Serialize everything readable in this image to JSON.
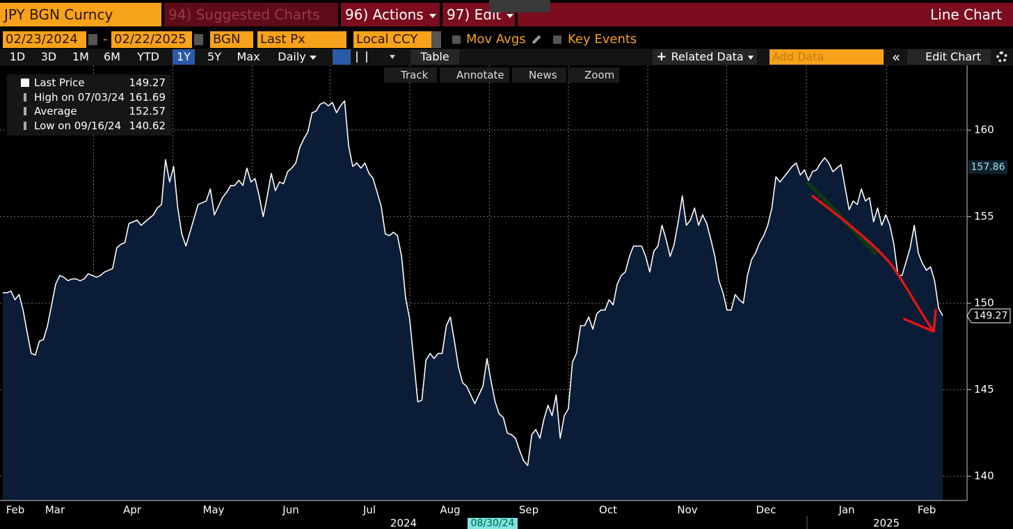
{
  "header": {
    "security": "JPY BGN Curncy",
    "suggested": "94) Suggested Charts",
    "actions": "96) Actions",
    "edit": "97) Edit",
    "chart_type": "Line Chart"
  },
  "controls": {
    "start_date": "02/23/2024",
    "range_separator": "-",
    "end_date": "02/22/2025",
    "source": "BGN",
    "field": "Last Px",
    "currency": "Local CCY",
    "mov_avgs": "Mov Avgs",
    "key_events": "Key Events"
  },
  "toolbar": {
    "ranges": [
      "1D",
      "3D",
      "1M",
      "6M",
      "YTD",
      "1Y",
      "5Y",
      "Max"
    ],
    "active_range": 5,
    "frequency": "Daily",
    "table": "Table",
    "related": "Related Data",
    "add_data": "Add Data",
    "edit_chart": "Edit Chart"
  },
  "tools": [
    "Track",
    "Annotate",
    "News",
    "Zoom"
  ],
  "legend": [
    {
      "label": "Last Price",
      "value": 149.27
    },
    {
      "label": "High on 07/03/24",
      "value": 161.69
    },
    {
      "label": "Average",
      "value": 152.57
    },
    {
      "label": "Low on 09/16/24",
      "value": 140.62
    }
  ],
  "chart_data": {
    "type": "line",
    "color": "#ffffff",
    "fill": "#0b1c36",
    "grid": true,
    "values": [
      150.6,
      150.6,
      150.7,
      150.2,
      150.5,
      149.6,
      148.3,
      147.1,
      147.0,
      147.8,
      147.9,
      148.7,
      149.9,
      151.1,
      151.6,
      151.5,
      151.3,
      151.4,
      151.4,
      151.3,
      151.4,
      151.7,
      151.6,
      151.5,
      151.6,
      151.8,
      151.9,
      152.0,
      153.2,
      153.4,
      153.5,
      154.6,
      154.7,
      154.8,
      154.5,
      154.7,
      154.9,
      155.1,
      155.5,
      155.7,
      158.3,
      157.0,
      157.9,
      155.5,
      154.0,
      153.3,
      154.1,
      154.9,
      155.7,
      155.8,
      155.9,
      156.6,
      155.1,
      155.6,
      156.1,
      156.4,
      156.8,
      156.8,
      157.1,
      156.8,
      157.8,
      157.0,
      157.2,
      156.2,
      155.0,
      156.2,
      157.5,
      156.5,
      157.0,
      156.9,
      157.6,
      157.8,
      158.1,
      159.0,
      159.5,
      159.9,
      161.0,
      161.1,
      161.5,
      161.6,
      161.4,
      161.6,
      161.0,
      161.4,
      161.69,
      159.1,
      157.9,
      158.1,
      157.8,
      158.1,
      157.5,
      157.2,
      156.4,
      155.6,
      154.0,
      153.9,
      154.1,
      153.9,
      152.7,
      150.3,
      149.1,
      146.7,
      144.3,
      144.4,
      146.7,
      147.1,
      146.8,
      147.1,
      147.1,
      148.7,
      149.2,
      147.8,
      146.3,
      145.4,
      145.2,
      144.7,
      144.2,
      144.7,
      145.2,
      146.8,
      145.5,
      144.3,
      143.6,
      143.4,
      142.5,
      142.4,
      142.2,
      141.5,
      140.9,
      140.62,
      142.4,
      142.7,
      142.2,
      143.3,
      144.1,
      143.5,
      144.7,
      142.2,
      143.5,
      143.9,
      146.6,
      147.1,
      148.7,
      148.7,
      149.2,
      148.5,
      149.4,
      149.6,
      149.6,
      150.2,
      149.9,
      151.1,
      151.6,
      151.8,
      152.7,
      153.3,
      153.3,
      153.3,
      152.7,
      151.8,
      153.0,
      153.3,
      154.5,
      153.7,
      152.7,
      153.4,
      154.7,
      156.2,
      154.5,
      154.8,
      155.5,
      154.5,
      155.1,
      154.6,
      153.7,
      152.7,
      151.3,
      150.6,
      149.6,
      149.6,
      150.5,
      150.2,
      150.0,
      151.6,
      152.5,
      152.9,
      153.5,
      153.9,
      154.5,
      155.5,
      157.3,
      157.0,
      157.3,
      157.6,
      157.9,
      158.1,
      157.4,
      157.7,
      157.1,
      157.6,
      157.7,
      158.1,
      158.4,
      158.1,
      157.6,
      157.8,
      158.0,
      156.7,
      155.4,
      155.9,
      155.7,
      156.6,
      155.9,
      156.1,
      154.7,
      155.5,
      154.5,
      155.1,
      154.5,
      153.4,
      151.6,
      151.6,
      152.4,
      153.2,
      154.5,
      152.9,
      152.3,
      151.9,
      152.1,
      151.3,
      149.7,
      149.27
    ],
    "ylim": [
      138.6,
      163.5
    ],
    "yticks": [
      140,
      145,
      150,
      155,
      160
    ],
    "xtick_labels": [
      "Feb",
      "Mar",
      "Apr",
      "May",
      "Jun",
      "Jul",
      "Aug",
      "Sep",
      "Oct",
      "Nov",
      "Dec",
      "Jan",
      "Feb"
    ],
    "years": [
      "2024",
      "2025"
    ],
    "cursor_date": "08/30/24",
    "marker_value": 157.86
  }
}
